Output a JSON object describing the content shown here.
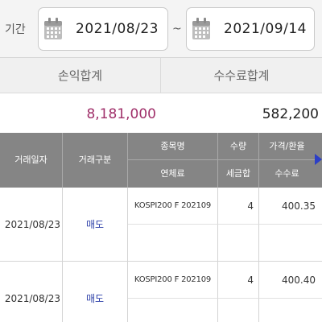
{
  "period": {
    "label": "기간",
    "start_date": "2021/08/23",
    "separator": "~",
    "end_date": "2021/09/14"
  },
  "summary": {
    "profit_label": "손익합계",
    "profit_value": "8,181,000",
    "fee_label": "수수료합계",
    "fee_value": "582,200"
  },
  "grid": {
    "headers": {
      "trade_date": "거래일자",
      "trade_type": "거래구분",
      "item_name": "종목명",
      "overdue_fee": "연체료",
      "quantity": "수량",
      "tax": "세금합",
      "price": "가격/환율",
      "commission": "수수료"
    },
    "rows": [
      {
        "date": "2021/08/23",
        "type": "매도",
        "name": "KOSPI200 F 202109",
        "quantity": "4",
        "price": "400.35"
      },
      {
        "date": "2021/08/23",
        "type": "매도",
        "name": "KOSPI200 F 202109",
        "quantity": "4",
        "price": "400.40"
      }
    ]
  },
  "colors": {
    "profit": "#a0306a",
    "header_bg": "#858585",
    "type_text": "#2c3fa8",
    "scroll_arrow": "#2c3fc6"
  }
}
